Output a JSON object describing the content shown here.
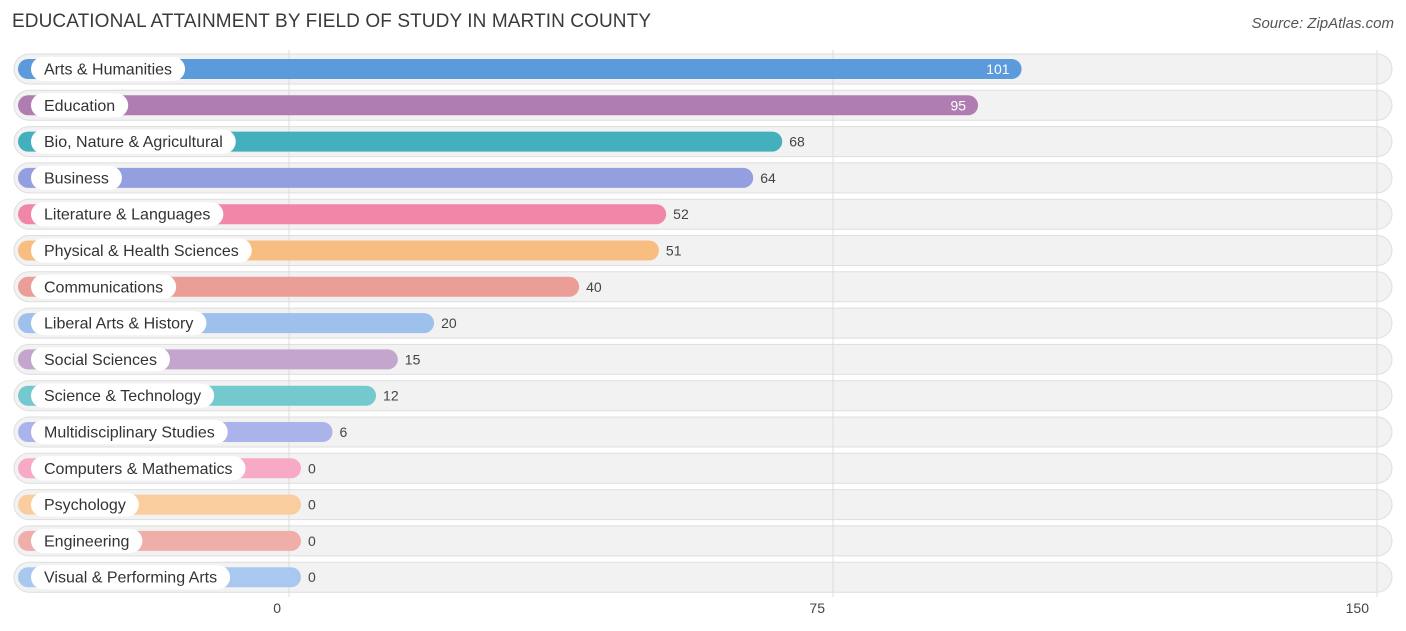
{
  "header": {
    "title": "EDUCATIONAL ATTAINMENT BY FIELD OF STUDY IN MARTIN COUNTY",
    "source": "Source: ZipAtlas.com"
  },
  "chart_data": {
    "type": "bar",
    "orientation": "horizontal",
    "title": "EDUCATIONAL ATTAINMENT BY FIELD OF STUDY IN MARTIN COUNTY",
    "xlabel": "",
    "ylabel": "",
    "xlim": [
      0,
      150
    ],
    "ticks": [
      0,
      75,
      150
    ],
    "grid": true,
    "categories": [
      "Arts & Humanities",
      "Education",
      "Bio, Nature & Agricultural",
      "Business",
      "Literature & Languages",
      "Physical & Health Sciences",
      "Communications",
      "Liberal Arts & History",
      "Social Sciences",
      "Science & Technology",
      "Multidisciplinary Studies",
      "Computers & Mathematics",
      "Psychology",
      "Engineering",
      "Visual & Performing Arts"
    ],
    "values": [
      101,
      95,
      68,
      64,
      52,
      51,
      40,
      20,
      15,
      12,
      6,
      0,
      0,
      0,
      0
    ],
    "colors": [
      "#5b9bdc",
      "#b07db3",
      "#45b0bd",
      "#949fe0",
      "#f286a8",
      "#f8bd80",
      "#eb9d97",
      "#9ec0ec",
      "#c3a5cd",
      "#73c9cd",
      "#aab4ea",
      "#f7a9c5",
      "#f9cd9d",
      "#f0aeab",
      "#a9c8ef"
    ]
  }
}
